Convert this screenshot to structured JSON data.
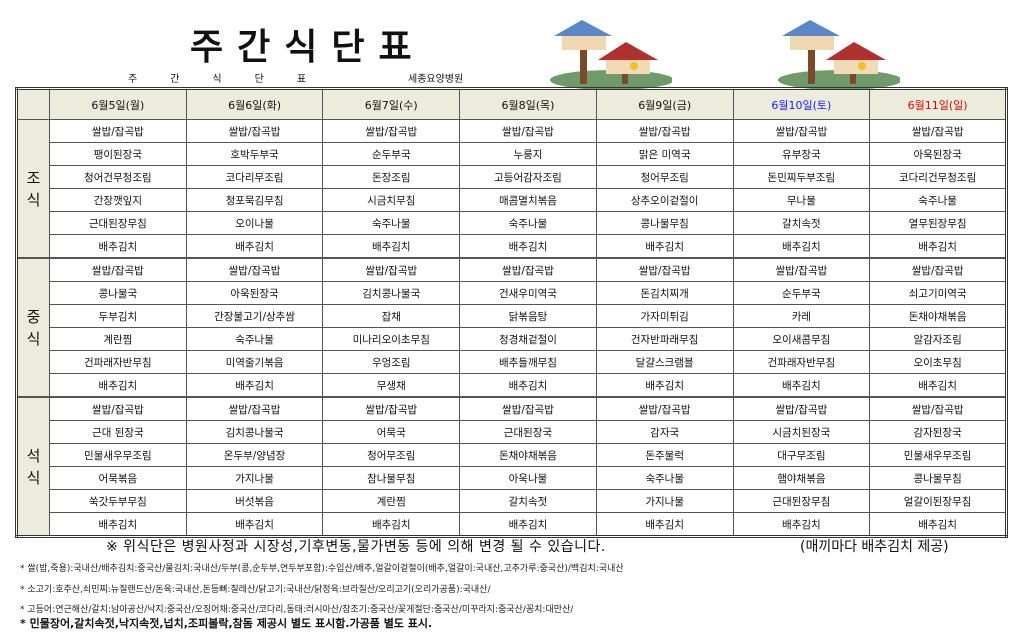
{
  "header": {
    "title": "주간식단표",
    "subtitle_chars": [
      "주",
      "간",
      "식",
      "단",
      "표"
    ],
    "hospital": "세종요양병원"
  },
  "days": [
    {
      "label": "6월5일(월)",
      "color": "#111111"
    },
    {
      "label": "6월6일(화)",
      "color": "#111111"
    },
    {
      "label": "6월7일(수)",
      "color": "#111111"
    },
    {
      "label": "6월8일(목)",
      "color": "#111111"
    },
    {
      "label": "6월9일(금)",
      "color": "#111111"
    },
    {
      "label": "6월10일(토)",
      "color": "#1a1aff"
    },
    {
      "label": "6월11일(일)",
      "color": "#e00000"
    }
  ],
  "meals": [
    {
      "label": "조식",
      "rows": [
        [
          "쌀밥/잡곡밥",
          "쌀밥/잡곡밥",
          "쌀밥/잡곡밥",
          "쌀밥/잡곡밥",
          "쌀밥/잡곡밥",
          "쌀밥/잡곡밥",
          "쌀밥/잡곡밥"
        ],
        [
          "팽이된장국",
          "호박두부국",
          "순두부국",
          "누룽지",
          "맑은 미역국",
          "유부장국",
          "아욱된장국"
        ],
        [
          "청어건무청조림",
          "코다리무조림",
          "돈장조림",
          "고등어감자조림",
          "청어무조림",
          "돈민찌두부조림",
          "코다리건무청조림"
        ],
        [
          "간장깻잎지",
          "청포묵김무침",
          "시금치무침",
          "매콤멸치볶음",
          "상추오이겉절이",
          "무나물",
          "숙주나물"
        ],
        [
          "근대된장무침",
          "오이나물",
          "숙주나물",
          "숙주나물",
          "콩나물무침",
          "갈치속젓",
          "열무된장무침"
        ],
        [
          "배추김치",
          "배추김치",
          "배추김치",
          "배추김치",
          "배추김치",
          "배추김치",
          "배추김치"
        ]
      ]
    },
    {
      "label": "중식",
      "rows": [
        [
          "쌀밥/잡곡밥",
          "쌀밥/잡곡밥",
          "쌀밥/잡곡밥",
          "쌀밥/잡곡밥",
          "쌀밥/잡곡밥",
          "쌀밥/잡곡밥",
          "쌀밥/잡곡밥"
        ],
        [
          "콩나물국",
          "아욱된장국",
          "김치콩나물국",
          "건새우미역국",
          "돈김치찌개",
          "순두부국",
          "쇠고기미역국"
        ],
        [
          "두부김치",
          "간장불고기/상추쌈",
          "잡채",
          "닭볶음탕",
          "가자미튀김",
          "카레",
          "돈채야채볶음"
        ],
        [
          "계란찜",
          "숙주나물",
          "미나리오이초무침",
          "청경채겉절이",
          "건자반파래무침",
          "오이새콤무침",
          "알감자조림"
        ],
        [
          "건파래자반무침",
          "미역줄기볶음",
          "우엉조림",
          "배추들깨무침",
          "달걀스크램블",
          "건파래자반무침",
          "오이초무침"
        ],
        [
          "배추김치",
          "배추김치",
          "무생채",
          "배추김치",
          "배추김치",
          "배추김치",
          "배추김치"
        ]
      ]
    },
    {
      "label": "석식",
      "rows": [
        [
          "쌀밥/잡곡밥",
          "쌀밥/잡곡밥",
          "쌀밥/잡곡밥",
          "쌀밥/잡곡밥",
          "쌀밥/잡곡밥",
          "쌀밥/잡곡밥",
          "쌀밥/잡곡밥"
        ],
        [
          "근대 된장국",
          "김치콩나물국",
          "어묵국",
          "근대된장국",
          "감자국",
          "시금치된장국",
          "감자된장국"
        ],
        [
          "민물새우무조림",
          "온두부/양념장",
          "청어무조림",
          "돈채야채볶음",
          "돈주물럭",
          "대구무조림",
          "민물새우무조림"
        ],
        [
          "어묵볶음",
          "가지나물",
          "참나물무침",
          "아욱나물",
          "숙주나물",
          "햄야채볶음",
          "콩나물무침"
        ],
        [
          "쑥갓두부무침",
          "버섯볶음",
          "계란찜",
          "갈치속젓",
          "가지나물",
          "근대된장무침",
          "얼갈이된장무침"
        ],
        [
          "배추김치",
          "배추김치",
          "배추김치",
          "배추김치",
          "배추김치",
          "배추김치",
          "배추김치"
        ]
      ]
    }
  ],
  "notes": {
    "main": "※ 위식단은 병원사정과 시장성,기후변동,물가변동 등에 의해 변경 될 수 있습니다.",
    "kimchi": "(매끼마다 배추김치 제공)",
    "origin": [
      "* 쌀(밥,죽용):국내산/배추김치:중국산/물김치:국내산/두부(콩,순두부,연두부포함):수입산/배추,얼갈이겉절이(배추,얼갈이:국내산,고추가루:중국산)/백김치:국내산",
      "* 소고기:호주산,쇠민찌:뉴질랜드산/돈육:국내산,돈등뼈:칠레산/닭고기:국내산/닭정육:브라질산/오리고기(오리가공품):국내산/",
      "* 고등어:연근해산/갈치:남아공산/낙지:중국산/오징어채:중국산/코다리,동태:러시아산/참조기:중국산/꽃게절단:중국산/미꾸라지:중국산/꽁치:대만산/"
    ],
    "bold": "* 민물장어,갈치속젓,낙지속젓,넙치,조피볼락,참돔 제공시 별도 표시함.가공품 별도 표시."
  }
}
